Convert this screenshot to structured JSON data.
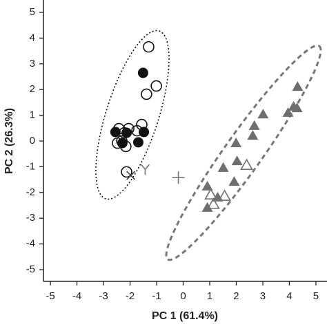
{
  "chart_data": {
    "type": "scatter",
    "xlabel": "PC 1 (61.4%)",
    "ylabel": "PC 2 (26.3%)",
    "xlim": [
      -5.3,
      5.3
    ],
    "ylim": [
      -5.5,
      5.5
    ],
    "xticks": [
      -5,
      -4,
      -3,
      -2,
      -1,
      0,
      1,
      2,
      3,
      4,
      5
    ],
    "yticks": [
      -5,
      -4,
      -3,
      -2,
      -1,
      0,
      1,
      2,
      3,
      4,
      5
    ],
    "series": [
      {
        "marker": "open-circle",
        "color": "#111111",
        "x": [
          -1.3,
          -1.01,
          -1.38,
          -2.05,
          -2.42,
          -2.21,
          -1.56,
          -1.74,
          -2.31,
          -2.47,
          -2.16,
          -2.13
        ],
        "y": [
          3.66,
          2.14,
          1.82,
          0.48,
          0.48,
          0.32,
          0.64,
          0.4,
          0,
          -0.08,
          -0.21,
          -1.2
        ]
      },
      {
        "marker": "filled-circle",
        "color": "#111111",
        "x": [
          -1.51,
          -2.55,
          -2.13,
          -1.48,
          -2.29,
          -1.69
        ],
        "y": [
          2.65,
          0.35,
          0.32,
          0.35,
          -0.08,
          -0.05
        ]
      },
      {
        "marker": "filled-triangle",
        "color": "#6e6e6e",
        "x": [
          4.31,
          4.29,
          4.16,
          3.95,
          3.01,
          2.68,
          2.62,
          1.99,
          1.51,
          2.03,
          1.92,
          0.91,
          1.3,
          0.91
        ],
        "y": [
          2.11,
          1.28,
          1.34,
          1.1,
          1.04,
          0.59,
          0.21,
          -0.08,
          -1.04,
          -0.78,
          -1.58,
          -1.76,
          -2.19,
          -2.59
        ]
      },
      {
        "marker": "open-triangle",
        "color": "#6e6e6e",
        "x": [
          2.39,
          1.56,
          1.04,
          1.14
        ],
        "y": [
          -0.94,
          -2.14,
          -2.09,
          -2.46
        ]
      },
      {
        "marker": "plus",
        "color": "#777777",
        "x": [
          -0.18
        ],
        "y": [
          -1.42
        ]
      },
      {
        "marker": "y",
        "color": "#777777",
        "x": [
          -1.43
        ],
        "y": [
          -1.1
        ]
      },
      {
        "marker": "cross",
        "color": "#444444",
        "x": [
          -1.97
        ],
        "y": [
          -1.34
        ]
      }
    ]
  }
}
